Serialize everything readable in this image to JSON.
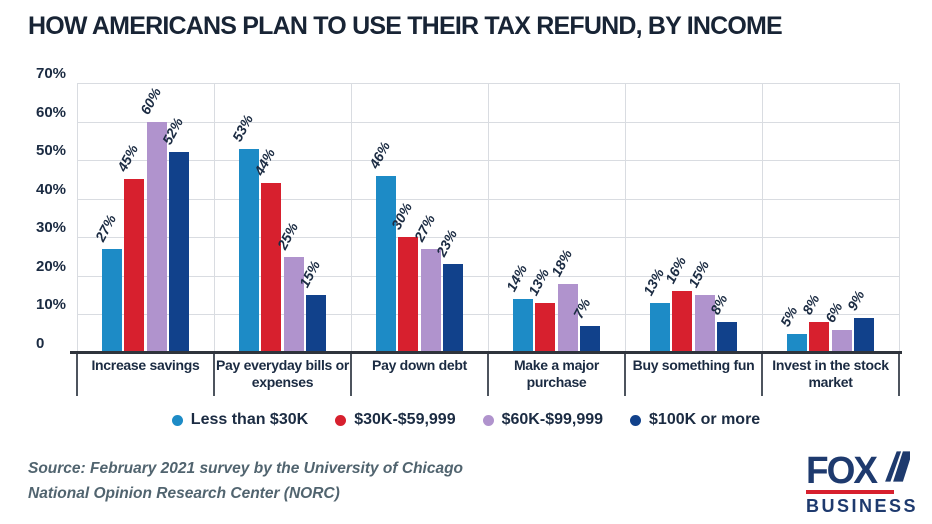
{
  "title": "HOW AMERICANS PLAN TO USE THEIR TAX REFUND, BY INCOME",
  "chart_data": {
    "type": "bar",
    "title": "HOW AMERICANS PLAN TO USE THEIR TAX REFUND, BY INCOME",
    "categories": [
      "Increase savings",
      "Pay everyday bills or expenses",
      "Pay down debt",
      "Make a major purchase",
      "Buy something fun",
      "Invest in the stock market"
    ],
    "series": [
      {
        "name": "Less than $30K",
        "color": "#1d8bc6",
        "values": [
          27,
          53,
          46,
          14,
          13,
          5
        ]
      },
      {
        "name": "$30K-$59,999",
        "color": "#d7202e",
        "values": [
          45,
          44,
          30,
          13,
          16,
          8
        ]
      },
      {
        "name": "$60K-$99,999",
        "color": "#b093cd",
        "values": [
          60,
          25,
          27,
          18,
          15,
          6
        ]
      },
      {
        "name": "$100K or more",
        "color": "#11418b",
        "values": [
          52,
          15,
          23,
          7,
          8,
          9
        ]
      }
    ],
    "value_suffix": "%",
    "ylim": [
      0,
      70
    ],
    "y_ticks": [
      "0",
      "10%",
      "20%",
      "30%",
      "40%",
      "50%",
      "60%",
      "70%"
    ],
    "grid": true,
    "legend_position": "bottom"
  },
  "source": {
    "line1": "Source: February 2021 survey by the University of Chicago",
    "line2": "National Opinion Research Center (NORC)"
  },
  "logo": {
    "brand": "FOX",
    "subbrand": "BUSINESS"
  },
  "colors": {
    "text_dark": "#182435",
    "label_navy": "#1b2b42",
    "source_gray": "#51646f",
    "logo_navy": "#1e3a6e",
    "logo_red": "#d7202e",
    "grid": "#d9dce1",
    "axis": "#2f343c"
  }
}
